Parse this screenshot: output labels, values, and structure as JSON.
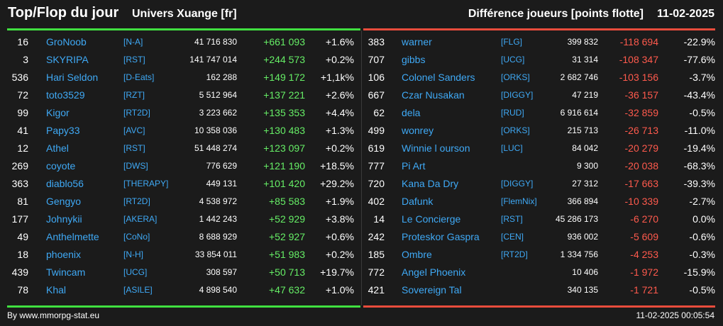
{
  "header": {
    "title": "Top/Flop du jour",
    "universe": "Univers Xuange [fr]",
    "metric": "Différence joueurs [points flotte]",
    "date": "11-02-2025"
  },
  "colors": {
    "top_line": "#40e040",
    "flop_line": "#e84c3c",
    "positive": "#66ee66",
    "negative": "#ff5a4d",
    "link": "#3fa9f5"
  },
  "top": [
    {
      "rank": "16",
      "name": "GroNoob",
      "alliance": "[N-A]",
      "points": "41 716 830",
      "diff": "+661 093",
      "pct": "+1.6%"
    },
    {
      "rank": "3",
      "name": "SKYRIPA",
      "alliance": "[RST]",
      "points": "141 747 014",
      "diff": "+244 573",
      "pct": "+0.2%"
    },
    {
      "rank": "536",
      "name": "Hari Seldon",
      "alliance": "[D-Eats]",
      "points": "162 288",
      "diff": "+149 172",
      "pct": "+1,1k%"
    },
    {
      "rank": "72",
      "name": "toto3529",
      "alliance": "[RZT]",
      "points": "5 512 964",
      "diff": "+137 221",
      "pct": "+2.6%"
    },
    {
      "rank": "99",
      "name": "Kigor",
      "alliance": "[RT2D]",
      "points": "3 223 662",
      "diff": "+135 353",
      "pct": "+4.4%"
    },
    {
      "rank": "41",
      "name": "Papy33",
      "alliance": "[AVC]",
      "points": "10 358 036",
      "diff": "+130 483",
      "pct": "+1.3%"
    },
    {
      "rank": "12",
      "name": "Athel",
      "alliance": "[RST]",
      "points": "51 448 274",
      "diff": "+123 097",
      "pct": "+0.2%"
    },
    {
      "rank": "269",
      "name": "coyote",
      "alliance": "[DWS]",
      "points": "776 629",
      "diff": "+121 190",
      "pct": "+18.5%"
    },
    {
      "rank": "363",
      "name": "diablo56",
      "alliance": "[THERAPY]",
      "points": "449 131",
      "diff": "+101 420",
      "pct": "+29.2%"
    },
    {
      "rank": "81",
      "name": "Gengyo",
      "alliance": "[RT2D]",
      "points": "4 538 972",
      "diff": "+85 583",
      "pct": "+1.9%"
    },
    {
      "rank": "177",
      "name": "Johnykii",
      "alliance": "[AKERA]",
      "points": "1 442 243",
      "diff": "+52 929",
      "pct": "+3.8%"
    },
    {
      "rank": "49",
      "name": "Anthelmette",
      "alliance": "[CoNo]",
      "points": "8 688 929",
      "diff": "+52 927",
      "pct": "+0.6%"
    },
    {
      "rank": "18",
      "name": "phoenix",
      "alliance": "[N-H]",
      "points": "33 854 011",
      "diff": "+51 983",
      "pct": "+0.2%"
    },
    {
      "rank": "439",
      "name": "Twincam",
      "alliance": "[UCG]",
      "points": "308 597",
      "diff": "+50 713",
      "pct": "+19.7%"
    },
    {
      "rank": "78",
      "name": "Khal",
      "alliance": "[ASILE]",
      "points": "4 898 540",
      "diff": "+47 632",
      "pct": "+1.0%"
    }
  ],
  "flop": [
    {
      "rank": "383",
      "name": "warner",
      "alliance": "[FLG]",
      "points": "399 832",
      "diff": "-118 694",
      "pct": "-22.9%"
    },
    {
      "rank": "707",
      "name": "gibbs",
      "alliance": "[UCG]",
      "points": "31 314",
      "diff": "-108 347",
      "pct": "-77.6%"
    },
    {
      "rank": "106",
      "name": "Colonel Sanders",
      "alliance": "[ORKS]",
      "points": "2 682 746",
      "diff": "-103 156",
      "pct": "-3.7%"
    },
    {
      "rank": "667",
      "name": "Czar Nusakan",
      "alliance": "[DIGGY]",
      "points": "47 219",
      "diff": "-36 157",
      "pct": "-43.4%"
    },
    {
      "rank": "62",
      "name": "dela",
      "alliance": "[RUD]",
      "points": "6 916 614",
      "diff": "-32 859",
      "pct": "-0.5%"
    },
    {
      "rank": "499",
      "name": "wonrey",
      "alliance": "[ORKS]",
      "points": "215 713",
      "diff": "-26 713",
      "pct": "-11.0%"
    },
    {
      "rank": "619",
      "name": "Winnie l ourson",
      "alliance": "[LUC]",
      "points": "84 042",
      "diff": "-20 279",
      "pct": "-19.4%"
    },
    {
      "rank": "777",
      "name": "Pi Art",
      "alliance": "",
      "points": "9 300",
      "diff": "-20 038",
      "pct": "-68.3%"
    },
    {
      "rank": "720",
      "name": "Kana Da Dry",
      "alliance": "[DIGGY]",
      "points": "27 312",
      "diff": "-17 663",
      "pct": "-39.3%"
    },
    {
      "rank": "402",
      "name": "Dafunk",
      "alliance": "[FlemNix]",
      "points": "366 894",
      "diff": "-10 339",
      "pct": "-2.7%"
    },
    {
      "rank": "14",
      "name": "Le Concierge",
      "alliance": "[RST]",
      "points": "45 286 173",
      "diff": "-6 270",
      "pct": "0.0%"
    },
    {
      "rank": "242",
      "name": "Proteskor Gaspra",
      "alliance": "[CEN]",
      "points": "936 002",
      "diff": "-5 609",
      "pct": "-0.6%"
    },
    {
      "rank": "185",
      "name": "Ombre",
      "alliance": "[RT2D]",
      "points": "1 334 756",
      "diff": "-4 253",
      "pct": "-0.3%"
    },
    {
      "rank": "772",
      "name": "Angel Phoenix",
      "alliance": "",
      "points": "10 406",
      "diff": "-1 972",
      "pct": "-15.9%"
    },
    {
      "rank": "421",
      "name": "Sovereign Tal",
      "alliance": "",
      "points": "340 135",
      "diff": "-1 721",
      "pct": "-0.5%"
    }
  ],
  "footer": {
    "credit": "By www.mmorpg-stat.eu",
    "timestamp": "11-02-2025 00:05:54"
  }
}
